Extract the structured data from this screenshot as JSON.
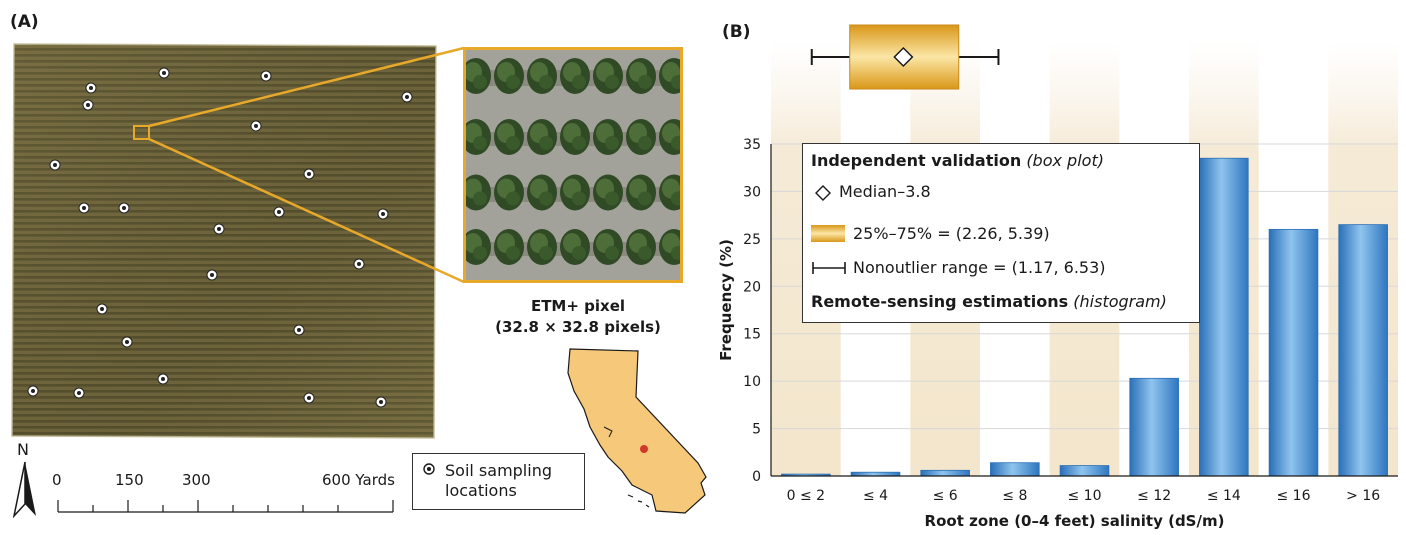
{
  "panel_a": {
    "label": "(A)",
    "inset_caption_line1": "ETM+ pixel",
    "inset_caption_line2": "(32.8 × 32.8 pixels)",
    "north_label": "N",
    "scale_ticks": [
      "0",
      "150",
      "300",
      "600 Yards"
    ],
    "legend_label_line1": "Soil sampling",
    "legend_label_line2": "locations",
    "accent_color": "#e8a92a",
    "field_color": "#6b6238"
  },
  "panel_b": {
    "label": "(B)"
  },
  "chart_data": {
    "type": "bar",
    "categories": [
      "0 ≤ 2",
      "≤ 4",
      "≤ 6",
      "≤ 8",
      "≤ 10",
      "≤ 12",
      "≤ 14",
      "≤ 16",
      "> 16"
    ],
    "values": [
      0.2,
      0.4,
      0.6,
      1.4,
      1.1,
      10.3,
      33.5,
      26.0,
      26.5
    ],
    "xlabel": "Root zone (0–4 feet) salinity (dS/m)",
    "ylabel": "Frequency (%)",
    "ylim": [
      0,
      35
    ],
    "yticks": [
      "0",
      "5",
      "10",
      "15",
      "20",
      "25",
      "30",
      "35"
    ],
    "bar_color": "#4a90d0",
    "boxplot": {
      "median": 3.8,
      "q1": 2.26,
      "q3": 5.39,
      "whisker_low": 1.17,
      "whisker_high": 6.53,
      "color": "#e8a92a"
    },
    "legend": {
      "title1": "Independent validation",
      "title1_note": "(box plot)",
      "median_label": "Median–3.8",
      "box_label": "25%–75% = (2.26, 5.39)",
      "range_label": "Nonoutlier range = (1.17, 6.53)",
      "title2": "Remote-sensing estimations",
      "title2_note": "(histogram)"
    }
  }
}
